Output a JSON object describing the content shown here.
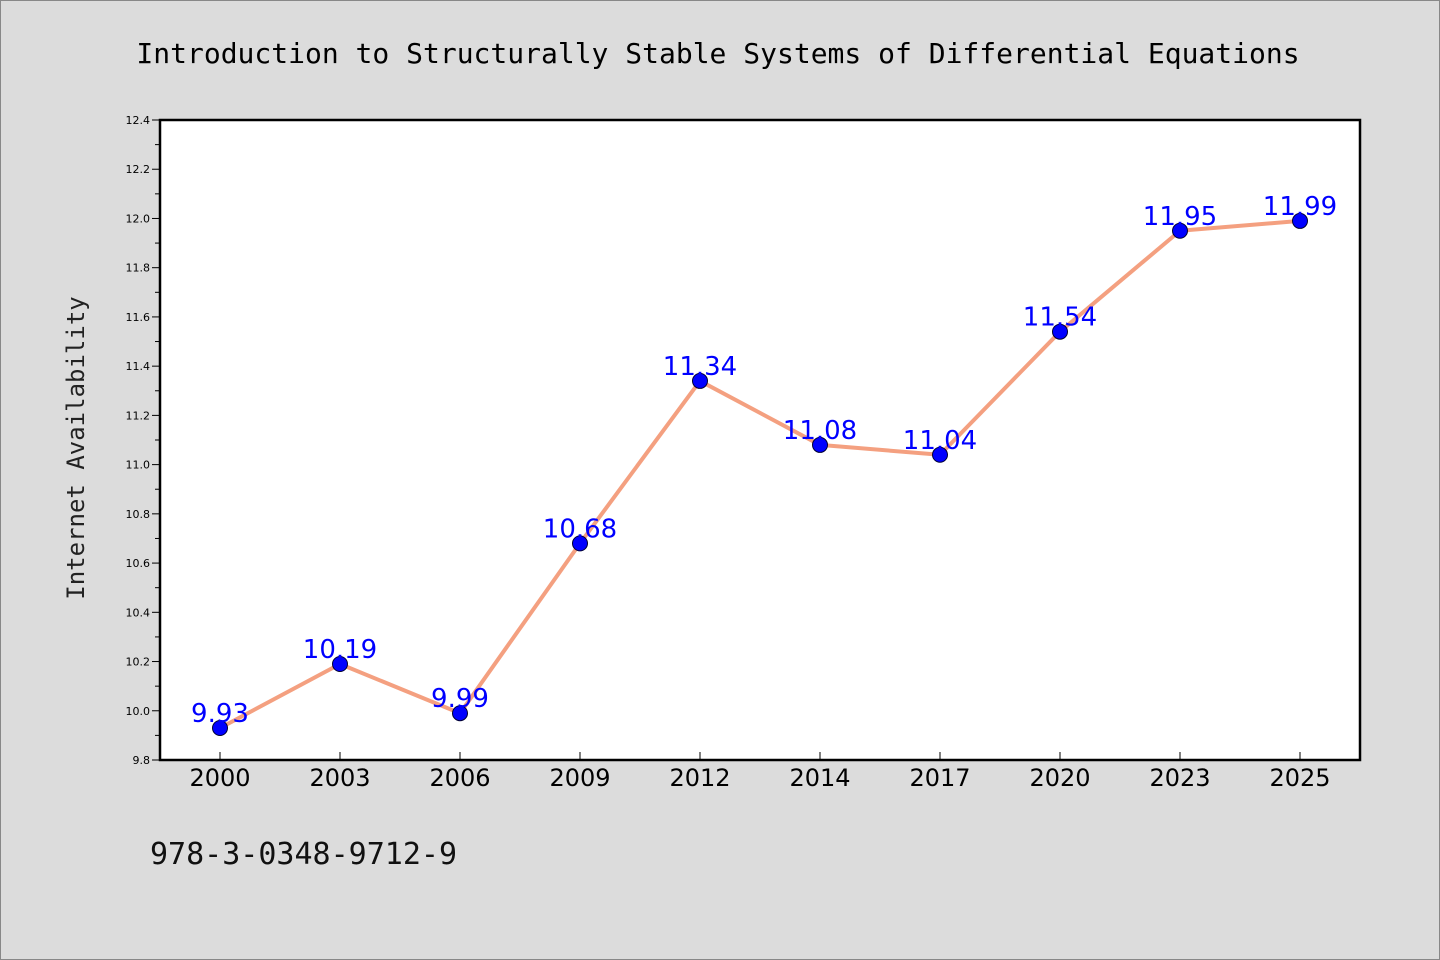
{
  "colors": {
    "background": "#dcdcdc",
    "plot_background": "#ffffff",
    "line": "#f4a080",
    "marker": "#0000ff",
    "data_label": "#0000ff"
  },
  "chart_data": {
    "type": "line",
    "title": "Introduction to Structurally Stable Systems of Differential Equations",
    "xlabel": "",
    "ylabel": "Internet Availability",
    "categories": [
      "2000",
      "2003",
      "2006",
      "2009",
      "2012",
      "2014",
      "2017",
      "2020",
      "2023",
      "2025"
    ],
    "series": [
      {
        "values": [
          9.93,
          10.19,
          9.99,
          10.68,
          11.34,
          11.08,
          11.04,
          11.54,
          11.95,
          11.99
        ],
        "labels": [
          "9.93",
          "10.19",
          "9.99",
          "10.68",
          "11.34",
          "11.08",
          "11.04",
          "11.54",
          "11.95",
          "11.99"
        ]
      }
    ],
    "ylim": [
      9.8,
      12.4
    ],
    "yticks": [
      "9.8",
      "10.0",
      "10.2",
      "10.4",
      "10.6",
      "10.8",
      "11.0",
      "11.2",
      "11.4",
      "11.6",
      "11.8",
      "12.0",
      "12.2",
      "12.4"
    ],
    "grid": false,
    "legend": "none"
  },
  "footer": {
    "isbn": "978-3-0348-9712-9"
  }
}
